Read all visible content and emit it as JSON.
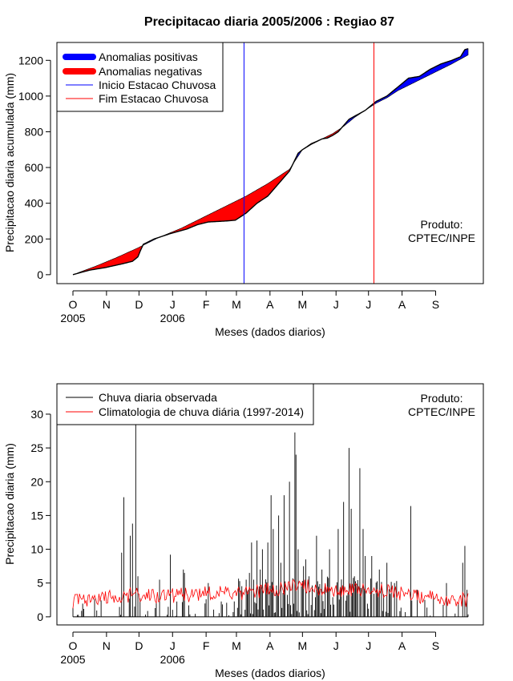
{
  "chart_data": [
    {
      "type": "area",
      "title": "Precipitacao diaria 2005/2006 : Regiao 87",
      "xlabel": "Meses (dados diarios)",
      "ylabel": "Precipitacao diaria acumulada (mm)",
      "xlim": [
        0,
        365
      ],
      "ylim": [
        -50,
        1300
      ],
      "yticks": [
        0,
        200,
        400,
        600,
        800,
        1000,
        1200
      ],
      "month_ticks": [
        {
          "day": 0,
          "label": "O"
        },
        {
          "day": 31,
          "label": "N"
        },
        {
          "day": 61,
          "label": "D"
        },
        {
          "day": 92,
          "label": "J"
        },
        {
          "day": 123,
          "label": "F"
        },
        {
          "day": 151,
          "label": "M"
        },
        {
          "day": 182,
          "label": "A"
        },
        {
          "day": 212,
          "label": "M"
        },
        {
          "day": 243,
          "label": "J"
        },
        {
          "day": 273,
          "label": "J"
        },
        {
          "day": 304,
          "label": "A"
        },
        {
          "day": 335,
          "label": "S"
        }
      ],
      "year_ticks": [
        {
          "day": 0,
          "label": "2005"
        },
        {
          "day": 92,
          "label": "2006"
        }
      ],
      "observed_cumulative": {
        "x": [
          0,
          15,
          30,
          45,
          55,
          60,
          62,
          65,
          75,
          90,
          105,
          115,
          125,
          140,
          150,
          160,
          170,
          180,
          190,
          200,
          208,
          212,
          220,
          230,
          235,
          240,
          245,
          255,
          270,
          280,
          290,
          300,
          310,
          320,
          330,
          340,
          350,
          358,
          362,
          365
        ],
        "y": [
          0,
          25,
          40,
          60,
          75,
          100,
          130,
          170,
          200,
          230,
          255,
          280,
          295,
          300,
          305,
          345,
          400,
          440,
          510,
          580,
          680,
          700,
          730,
          760,
          765,
          780,
          800,
          870,
          920,
          970,
          1000,
          1050,
          1100,
          1110,
          1150,
          1180,
          1200,
          1220,
          1260,
          1265
        ]
      },
      "climatology_cumulative": {
        "x": [
          0,
          20,
          40,
          60,
          80,
          100,
          120,
          140,
          160,
          180,
          200,
          212,
          220,
          230,
          240,
          250,
          260,
          270,
          280,
          290,
          300,
          310,
          320,
          330,
          340,
          350,
          365
        ],
        "y": [
          0,
          45,
          95,
          150,
          210,
          260,
          320,
          380,
          440,
          510,
          590,
          700,
          735,
          760,
          790,
          830,
          880,
          920,
          960,
          990,
          1030,
          1060,
          1090,
          1120,
          1150,
          1180,
          1230
        ]
      },
      "inicio_estacao_day": 158,
      "fim_estacao_day": 278,
      "legend": {
        "position": "top-left",
        "entries": [
          {
            "label": "Anomalias positivas",
            "color": "#0000ff"
          },
          {
            "label": "Anomalias negativas",
            "color": "#ff0000"
          },
          {
            "label": "Inicio Estacao Chuvosa",
            "color": "#0000ff"
          },
          {
            "label": "Fim Estacao Chuvosa",
            "color": "#ff0000"
          }
        ]
      },
      "annotation": [
        "Produto:",
        "CPTEC/INPE"
      ]
    },
    {
      "type": "bar",
      "title": "",
      "xlabel": "Meses (dados diarios)",
      "ylabel": "Precipitacao diaria (mm)",
      "xlim": [
        0,
        365
      ],
      "ylim": [
        -1.2,
        34.5
      ],
      "yticks": [
        0,
        5,
        10,
        15,
        20,
        25,
        30
      ],
      "month_ticks": [
        {
          "day": 0,
          "label": "O"
        },
        {
          "day": 31,
          "label": "N"
        },
        {
          "day": 61,
          "label": "D"
        },
        {
          "day": 92,
          "label": "J"
        },
        {
          "day": 123,
          "label": "F"
        },
        {
          "day": 151,
          "label": "M"
        },
        {
          "day": 182,
          "label": "A"
        },
        {
          "day": 212,
          "label": "M"
        },
        {
          "day": 243,
          "label": "J"
        },
        {
          "day": 273,
          "label": "J"
        },
        {
          "day": 304,
          "label": "A"
        },
        {
          "day": 335,
          "label": "S"
        }
      ],
      "year_ticks": [
        {
          "day": 0,
          "label": "2005"
        },
        {
          "day": 92,
          "label": "2006"
        }
      ],
      "observed_peaks": [
        {
          "day": 45,
          "value": 9.5
        },
        {
          "day": 47,
          "value": 17.7
        },
        {
          "day": 53,
          "value": 12.0
        },
        {
          "day": 55,
          "value": 13.8
        },
        {
          "day": 58,
          "value": 28.8
        },
        {
          "day": 60,
          "value": 6.0
        },
        {
          "day": 80,
          "value": 5.5
        },
        {
          "day": 90,
          "value": 9.2
        },
        {
          "day": 102,
          "value": 7.0
        },
        {
          "day": 103,
          "value": 6.5
        },
        {
          "day": 125,
          "value": 5.0
        },
        {
          "day": 160,
          "value": 5.5
        },
        {
          "day": 163,
          "value": 6.5
        },
        {
          "day": 165,
          "value": 11.0
        },
        {
          "day": 167,
          "value": 5.5
        },
        {
          "day": 170,
          "value": 11.3
        },
        {
          "day": 173,
          "value": 7.0
        },
        {
          "day": 175,
          "value": 10.0
        },
        {
          "day": 180,
          "value": 11.0
        },
        {
          "day": 183,
          "value": 18.0
        },
        {
          "day": 185,
          "value": 13.0
        },
        {
          "day": 190,
          "value": 15.0
        },
        {
          "day": 192,
          "value": 8.0
        },
        {
          "day": 195,
          "value": 18.0
        },
        {
          "day": 200,
          "value": 20.0
        },
        {
          "day": 205,
          "value": 27.3
        },
        {
          "day": 206,
          "value": 24.0
        },
        {
          "day": 208,
          "value": 10.0
        },
        {
          "day": 213,
          "value": 7.5
        },
        {
          "day": 215,
          "value": 8.5
        },
        {
          "day": 218,
          "value": 6.0
        },
        {
          "day": 225,
          "value": 12.0
        },
        {
          "day": 230,
          "value": 7.0
        },
        {
          "day": 237,
          "value": 10.0
        },
        {
          "day": 245,
          "value": 13.0
        },
        {
          "day": 250,
          "value": 17.0
        },
        {
          "day": 255,
          "value": 25.0
        },
        {
          "day": 257,
          "value": 16.0
        },
        {
          "day": 260,
          "value": 6.0
        },
        {
          "day": 265,
          "value": 22.0
        },
        {
          "day": 268,
          "value": 13.0
        },
        {
          "day": 270,
          "value": 9.0
        },
        {
          "day": 276,
          "value": 9.0
        },
        {
          "day": 283,
          "value": 7.0
        },
        {
          "day": 290,
          "value": 8.0
        },
        {
          "day": 297,
          "value": 5.0
        },
        {
          "day": 312,
          "value": 16.4
        },
        {
          "day": 318,
          "value": 4.0
        },
        {
          "day": 325,
          "value": 2.5
        },
        {
          "day": 333,
          "value": 3.0
        },
        {
          "day": 345,
          "value": 5.0
        },
        {
          "day": 360,
          "value": 8.0
        },
        {
          "day": 362,
          "value": 10.5
        },
        {
          "day": 364,
          "value": 4.0
        }
      ],
      "climatology": {
        "x": [
          0,
          20,
          40,
          60,
          80,
          100,
          120,
          140,
          150,
          160,
          170,
          180,
          190,
          200,
          210,
          220,
          230,
          240,
          250,
          260,
          270,
          280,
          290,
          300,
          310,
          320,
          330,
          340,
          350,
          365
        ],
        "y": [
          2.3,
          2.7,
          3.0,
          3.3,
          3.1,
          3.2,
          3.4,
          3.5,
          3.5,
          3.5,
          3.7,
          3.9,
          4.0,
          4.3,
          4.6,
          4.5,
          4.0,
          3.8,
          3.9,
          4.0,
          4.1,
          3.9,
          3.7,
          3.5,
          3.3,
          3.1,
          3.0,
          2.8,
          2.6,
          2.5
        ]
      },
      "legend": {
        "position": "top-left",
        "entries": [
          {
            "label": "Chuva diaria observada",
            "color": "#000000"
          },
          {
            "label": "Climatologia de chuva diária (1997-2014)",
            "color": "#ff0000"
          }
        ]
      },
      "annotation": [
        "Produto:",
        "CPTEC/INPE"
      ]
    }
  ]
}
